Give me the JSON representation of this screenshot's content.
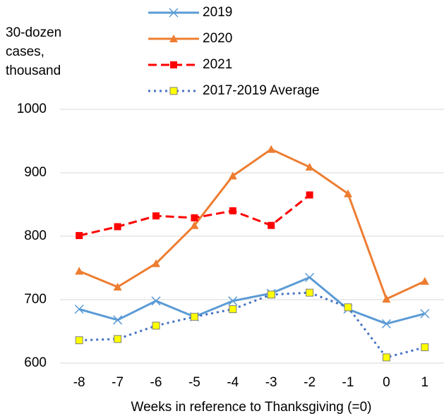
{
  "chart_data": {
    "type": "line",
    "y_label": "30-dozen cases, thousand",
    "x_label": "Weeks in reference to Thanksgiving (=0)",
    "x": [
      -8,
      -7,
      -6,
      -5,
      -4,
      -3,
      -2,
      -1,
      0,
      1
    ],
    "xlim": [
      -8.5,
      1.5
    ],
    "xticks": [
      -8,
      -7,
      -6,
      -5,
      -4,
      -3,
      -2,
      -1,
      0,
      1
    ],
    "ylim": [
      600,
      1000
    ],
    "yticks": [
      600,
      700,
      800,
      900,
      1000
    ],
    "grid": true,
    "legend": "top",
    "series": [
      {
        "name": "2019",
        "color": "#5b9bd5",
        "marker": "x",
        "dash": "solid",
        "values": [
          685,
          668,
          698,
          673,
          698,
          710,
          735,
          685,
          662,
          678
        ]
      },
      {
        "name": "2020",
        "color": "#ed7d31",
        "marker": "triangle",
        "dash": "solid",
        "values": [
          745,
          720,
          757,
          817,
          895,
          937,
          909,
          867,
          701,
          729
        ]
      },
      {
        "name": "2021",
        "color": "#ff0000",
        "marker": "square",
        "dash": "dashed",
        "values": [
          801,
          815,
          832,
          829,
          840,
          817,
          865,
          null,
          null,
          null
        ]
      },
      {
        "name": "2017-2019 Average",
        "color": "#4472c4",
        "marker": "yellow-square",
        "dash": "dotted",
        "values": [
          636,
          638,
          659,
          673,
          685,
          708,
          711,
          688,
          609,
          625
        ]
      }
    ]
  }
}
